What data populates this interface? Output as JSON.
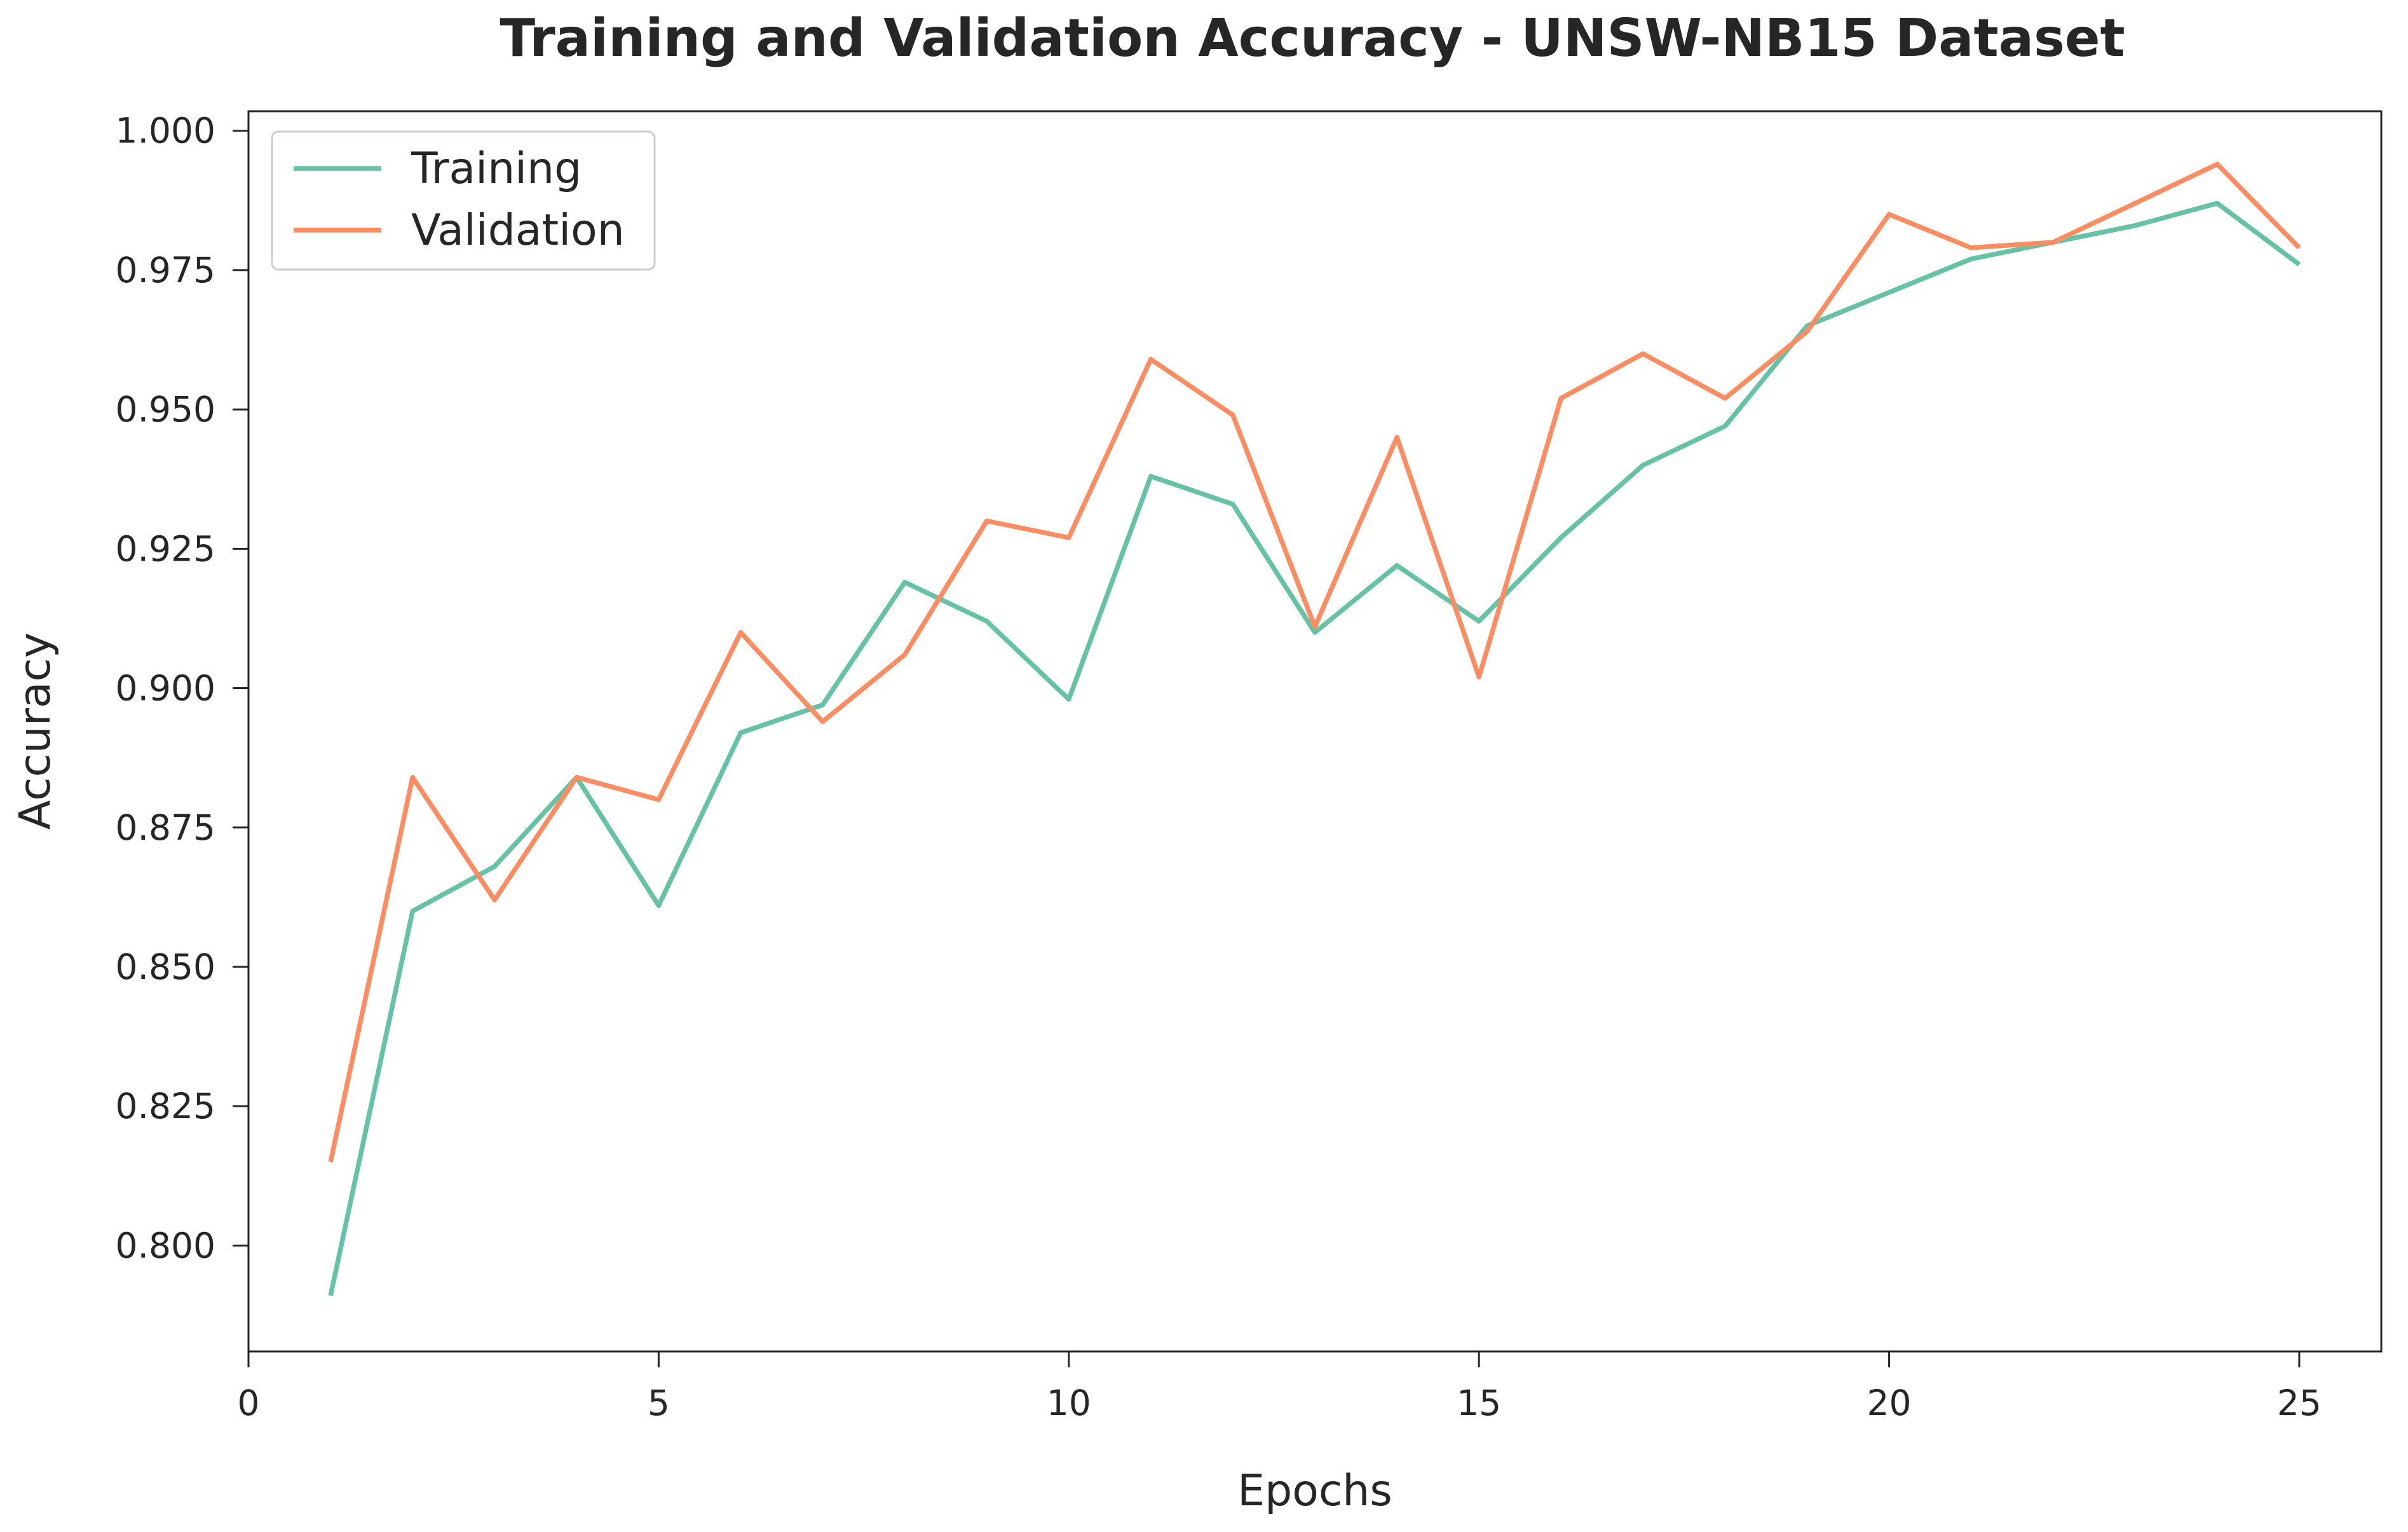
{
  "chart_data": {
    "type": "line",
    "title": "Training and Validation Accuracy - UNSW-NB15 Dataset",
    "xlabel": "Epochs",
    "ylabel": "Accuracy",
    "xlim": [
      0,
      26
    ],
    "ylim": [
      0.781,
      1.0035
    ],
    "xticks": [
      0,
      5,
      10,
      15,
      20,
      25
    ],
    "yticks": [
      0.8,
      0.825,
      0.85,
      0.875,
      0.9,
      0.925,
      0.95,
      0.975,
      1.0
    ],
    "xtick_labels": [
      "0",
      "5",
      "10",
      "15",
      "20",
      "25"
    ],
    "ytick_labels": [
      "0.800",
      "0.825",
      "0.850",
      "0.875",
      "0.900",
      "0.925",
      "0.950",
      "0.975",
      "1.000"
    ],
    "grid": false,
    "legend_position": "top-left",
    "x": [
      1,
      2,
      3,
      4,
      5,
      6,
      7,
      8,
      9,
      10,
      11,
      12,
      13,
      14,
      15,
      16,
      17,
      18,
      19,
      20,
      21,
      22,
      23,
      24,
      25
    ],
    "series": [
      {
        "name": "Training",
        "color": "#66c2a5",
        "values": [
          0.791,
          0.86,
          0.868,
          0.884,
          0.861,
          0.892,
          0.897,
          0.919,
          0.912,
          0.898,
          0.938,
          0.933,
          0.91,
          0.922,
          0.912,
          0.927,
          0.94,
          0.947,
          0.965,
          0.971,
          0.977,
          0.98,
          0.983,
          0.987,
          0.976
        ]
      },
      {
        "name": "Validation",
        "color": "#fc8d62",
        "values": [
          0.815,
          0.884,
          0.862,
          0.884,
          0.88,
          0.91,
          0.894,
          0.906,
          0.93,
          0.927,
          0.959,
          0.949,
          0.911,
          0.945,
          0.902,
          0.952,
          0.96,
          0.952,
          0.964,
          0.985,
          0.979,
          0.98,
          0.987,
          0.994,
          0.979
        ]
      }
    ]
  }
}
